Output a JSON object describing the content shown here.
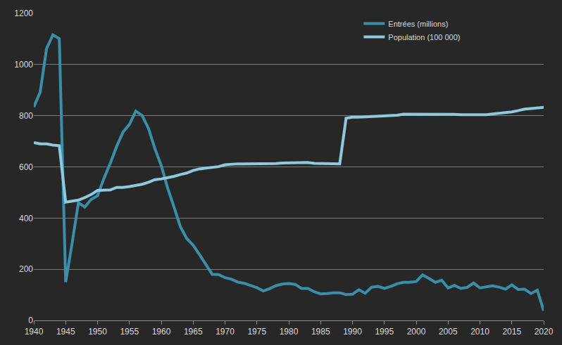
{
  "chart_data": {
    "type": "line",
    "x": [
      1940,
      1941,
      1942,
      1943,
      1944,
      1945,
      1946,
      1947,
      1948,
      1949,
      1950,
      1951,
      1952,
      1953,
      1954,
      1955,
      1956,
      1957,
      1958,
      1959,
      1960,
      1961,
      1962,
      1963,
      1964,
      1965,
      1966,
      1967,
      1968,
      1969,
      1970,
      1971,
      1972,
      1973,
      1974,
      1975,
      1976,
      1977,
      1978,
      1979,
      1980,
      1981,
      1982,
      1983,
      1984,
      1985,
      1986,
      1987,
      1988,
      1989,
      1990,
      1991,
      1992,
      1993,
      1994,
      1995,
      1996,
      1997,
      1998,
      1999,
      2000,
      2001,
      2002,
      2003,
      2004,
      2005,
      2006,
      2007,
      2008,
      2009,
      2010,
      2011,
      2012,
      2013,
      2014,
      2015,
      2016,
      2017,
      2018,
      2019,
      2020
    ],
    "series": [
      {
        "name": "Entrées (millions)",
        "color": "#3a8ea7",
        "values": [
          834,
          892,
          1062,
          1116,
          1101,
          150,
          300,
          460,
          443,
          473,
          487,
          555,
          614,
          680,
          736,
          766,
          818,
          801,
          750,
          671,
          605,
          517,
          443,
          366,
          320,
          294,
          257,
          216,
          180,
          179,
          167,
          161,
          150,
          145,
          136,
          128,
          115,
          124,
          136,
          142,
          144,
          141,
          125,
          125,
          112,
          104,
          105,
          108,
          108,
          101,
          102,
          120,
          106,
          130,
          133,
          125,
          133,
          143,
          149,
          149,
          152,
          178,
          164,
          149,
          157,
          127,
          137,
          125,
          129,
          146,
          127,
          130,
          135,
          130,
          122,
          139,
          121,
          122,
          105,
          118,
          38
        ]
      },
      {
        "name": "Population (100 000)",
        "color": "#8fc9df",
        "values": [
          695,
          690,
          690,
          685,
          683,
          462,
          466,
          470,
          480,
          492,
          508,
          510,
          510,
          520,
          520,
          523,
          528,
          532,
          540,
          550,
          553,
          557,
          563,
          570,
          576,
          586,
          592,
          595,
          598,
          601,
          608,
          611,
          612,
          612,
          612,
          611,
          613,
          613,
          613,
          615,
          616,
          617,
          617,
          617,
          614,
          614,
          614,
          612,
          612,
          790,
          794,
          794,
          795,
          797,
          799,
          800,
          801,
          802,
          806,
          806,
          807,
          807,
          807,
          805,
          805,
          805,
          805,
          804,
          804,
          804,
          804,
          804,
          807,
          809,
          811,
          815,
          820,
          826,
          828,
          831,
          833
        ]
      }
    ],
    "xlim": [
      1940,
      2020
    ],
    "xticks": [
      1940,
      1945,
      1950,
      1955,
      1960,
      1965,
      1970,
      1975,
      1980,
      1985,
      1990,
      1995,
      2000,
      2005,
      2010,
      2015,
      2020
    ],
    "ylim": [
      0,
      1200
    ],
    "yticks": [
      0,
      200,
      400,
      600,
      800,
      1000,
      1200
    ],
    "grid": true,
    "legend": "upper right"
  }
}
